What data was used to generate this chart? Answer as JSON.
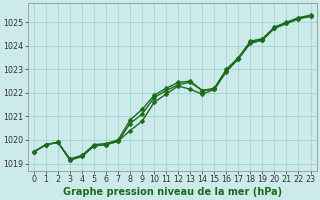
{
  "xlabel": "Graphe pression niveau de la mer (hPa)",
  "xlim": [
    -0.5,
    23.5
  ],
  "ylim": [
    1018.7,
    1025.8
  ],
  "yticks": [
    1019,
    1020,
    1021,
    1022,
    1023,
    1024,
    1025
  ],
  "xticks": [
    0,
    1,
    2,
    3,
    4,
    5,
    6,
    7,
    8,
    9,
    10,
    11,
    12,
    13,
    14,
    15,
    16,
    17,
    18,
    19,
    20,
    21,
    22,
    23
  ],
  "bg_color": "#cceaea",
  "grid_color": "#99cccc",
  "line_color": "#1a6b1a",
  "line1_x": [
    0,
    1,
    2,
    3,
    4,
    5,
    6,
    7,
    8,
    9,
    10,
    11,
    12,
    13,
    14,
    15,
    16,
    17,
    18,
    19,
    20,
    21,
    22,
    23
  ],
  "line1_y": [
    1019.5,
    1019.8,
    1019.9,
    1019.2,
    1019.35,
    1019.8,
    1019.85,
    1020.0,
    1020.85,
    1021.3,
    1021.9,
    1022.2,
    1022.45,
    1022.5,
    1022.1,
    1022.2,
    1023.0,
    1023.5,
    1024.2,
    1024.3,
    1024.8,
    1025.0,
    1025.2,
    1025.3
  ],
  "line2_x": [
    0,
    1,
    2,
    3,
    4,
    5,
    6,
    7,
    8,
    9,
    10,
    11,
    12,
    13,
    14,
    15,
    16,
    17,
    18,
    19,
    20,
    21,
    22,
    23
  ],
  "line2_y": [
    1019.5,
    1019.8,
    1019.9,
    1019.15,
    1019.3,
    1019.75,
    1019.8,
    1019.95,
    1020.4,
    1020.8,
    1021.6,
    1021.95,
    1022.3,
    1022.15,
    1021.95,
    1022.15,
    1022.9,
    1023.45,
    1024.1,
    1024.25,
    1024.75,
    1024.95,
    1025.15,
    1025.25
  ],
  "line3_x": [
    0,
    1,
    2,
    3,
    4,
    5,
    6,
    7,
    8,
    9,
    10,
    11,
    12,
    13,
    14,
    15,
    16,
    17,
    18,
    19,
    20,
    21,
    22,
    23
  ],
  "line3_y": [
    1019.5,
    1019.8,
    1019.9,
    1019.15,
    1019.3,
    1019.75,
    1019.8,
    1019.95,
    1020.7,
    1021.1,
    1021.8,
    1022.1,
    1022.35,
    1022.45,
    1022.1,
    1022.15,
    1022.95,
    1023.45,
    1024.15,
    1024.25,
    1024.75,
    1024.95,
    1025.15,
    1025.28
  ],
  "marker": "D",
  "markersize": 2.5,
  "linewidth": 1.0,
  "tick_fontsize": 5.8,
  "label_fontsize": 7.0,
  "label_fontweight": "bold"
}
